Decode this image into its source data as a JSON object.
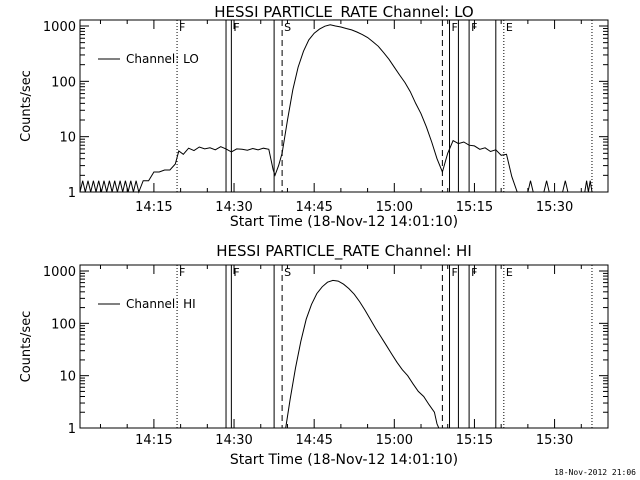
{
  "footer_stamp": "18-Nov-2012 21:06",
  "chart_data": [
    {
      "type": "line",
      "title": "HESSI PARTICLE_RATE Channel: LO",
      "xlabel": "Start Time (18-Nov-12 14:01:10)",
      "ylabel": "Counts/sec",
      "yscale": "log",
      "ylim": [
        1,
        1000
      ],
      "xlim": [
        "14:01:10",
        "15:40:00"
      ],
      "x_ticks": [
        "14:15",
        "14:30",
        "14:45",
        "15:00",
        "15:15",
        "15:30"
      ],
      "y_ticks": [
        "1",
        "10",
        "100",
        "1000"
      ],
      "legend": {
        "entry": "Channel: LO",
        "position": "top-left"
      },
      "markers": [
        {
          "time": "14:19:20",
          "style": "dotted",
          "label": "F"
        },
        {
          "time": "14:28:30",
          "style": "solid",
          "label": ""
        },
        {
          "time": "14:29:30",
          "style": "solid",
          "label": "F"
        },
        {
          "time": "14:37:30",
          "style": "solid",
          "label": ""
        },
        {
          "time": "14:39:00",
          "style": "dashed",
          "label": "S"
        },
        {
          "time": "15:09:00",
          "style": "dashed",
          "label": ""
        },
        {
          "time": "15:10:20",
          "style": "solid",
          "label": "F"
        },
        {
          "time": "15:12:00",
          "style": "solid",
          "label": ""
        },
        {
          "time": "15:14:00",
          "style": "solid",
          "label": "F"
        },
        {
          "time": "15:19:00",
          "style": "solid",
          "label": ""
        },
        {
          "time": "15:20:30",
          "style": "dotted",
          "label": "E"
        },
        {
          "time": "15:37:00",
          "style": "dotted",
          "label": ""
        }
      ],
      "series": [
        {
          "name": "Channel: LO",
          "points": [
            [
              "14:01:10",
              1
            ],
            [
              "14:01:40",
              1.6
            ],
            [
              "14:02:10",
              1
            ],
            [
              "14:02:40",
              1.6
            ],
            [
              "14:03:10",
              1
            ],
            [
              "14:03:40",
              1.6
            ],
            [
              "14:04:10",
              1
            ],
            [
              "14:04:40",
              1.6
            ],
            [
              "14:05:10",
              1
            ],
            [
              "14:05:40",
              1.6
            ],
            [
              "14:06:10",
              1
            ],
            [
              "14:06:40",
              1.6
            ],
            [
              "14:07:10",
              1
            ],
            [
              "14:07:40",
              1.6
            ],
            [
              "14:08:10",
              1
            ],
            [
              "14:08:40",
              1.6
            ],
            [
              "14:09:10",
              1
            ],
            [
              "14:09:40",
              1.6
            ],
            [
              "14:10:10",
              1
            ],
            [
              "14:10:40",
              1.6
            ],
            [
              "14:11:10",
              1
            ],
            [
              "14:11:40",
              1.6
            ],
            [
              "14:12:10",
              1
            ],
            [
              "14:13:00",
              1.6
            ],
            [
              "14:14:00",
              1.6
            ],
            [
              "14:15:00",
              2.3
            ],
            [
              "14:16:00",
              2.3
            ],
            [
              "14:17:00",
              2.5
            ],
            [
              "14:18:00",
              2.5
            ],
            [
              "14:19:00",
              3.2
            ],
            [
              "14:19:40",
              5.5
            ],
            [
              "14:20:30",
              4.8
            ],
            [
              "14:21:30",
              6.2
            ],
            [
              "14:22:30",
              5.6
            ],
            [
              "14:23:30",
              6.5
            ],
            [
              "14:24:30",
              6.0
            ],
            [
              "14:25:30",
              6.3
            ],
            [
              "14:26:30",
              5.8
            ],
            [
              "14:27:30",
              6.6
            ],
            [
              "14:28:30",
              6.0
            ],
            [
              "14:29:30",
              5.3
            ],
            [
              "14:30:30",
              6.0
            ],
            [
              "14:31:30",
              5.9
            ],
            [
              "14:32:30",
              5.7
            ],
            [
              "14:33:30",
              6.1
            ],
            [
              "14:34:30",
              5.8
            ],
            [
              "14:35:30",
              6.2
            ],
            [
              "14:36:30",
              5.9
            ],
            [
              "14:37:20",
              2.5
            ],
            [
              "14:37:40",
              2.0
            ],
            [
              "14:38:20",
              3.0
            ],
            [
              "14:39:00",
              5.0
            ],
            [
              "14:40:00",
              20
            ],
            [
              "14:41:00",
              70
            ],
            [
              "14:42:00",
              180
            ],
            [
              "14:43:00",
              350
            ],
            [
              "14:44:00",
              560
            ],
            [
              "14:45:00",
              740
            ],
            [
              "14:46:00",
              880
            ],
            [
              "14:47:00",
              990
            ],
            [
              "14:48:00",
              1050
            ],
            [
              "14:49:00",
              1000
            ],
            [
              "14:50:00",
              960
            ],
            [
              "14:51:00",
              900
            ],
            [
              "14:52:00",
              850
            ],
            [
              "14:53:00",
              780
            ],
            [
              "14:54:00",
              700
            ],
            [
              "14:55:00",
              620
            ],
            [
              "14:56:00",
              520
            ],
            [
              "14:57:00",
              430
            ],
            [
              "14:58:00",
              330
            ],
            [
              "14:59:00",
              250
            ],
            [
              "15:00:00",
              180
            ],
            [
              "15:01:00",
              130
            ],
            [
              "15:02:00",
              95
            ],
            [
              "15:03:00",
              65
            ],
            [
              "15:04:00",
              40
            ],
            [
              "15:05:00",
              26
            ],
            [
              "15:06:00",
              15
            ],
            [
              "15:07:00",
              8
            ],
            [
              "15:08:00",
              4.0
            ],
            [
              "15:09:00",
              2.3
            ],
            [
              "15:10:00",
              5.0
            ],
            [
              "15:11:00",
              8.5
            ],
            [
              "15:12:00",
              7.5
            ],
            [
              "15:13:00",
              8.0
            ],
            [
              "15:14:00",
              7.0
            ],
            [
              "15:15:00",
              6.8
            ],
            [
              "15:16:00",
              5.9
            ],
            [
              "15:17:00",
              6.3
            ],
            [
              "15:18:00",
              5.4
            ],
            [
              "15:19:00",
              5.8
            ],
            [
              "15:20:00",
              4.6
            ],
            [
              "15:21:00",
              4.8
            ],
            [
              "15:22:00",
              1.9
            ],
            [
              "15:23:00",
              1.0
            ],
            [
              "15:25:00",
              1.0
            ],
            [
              "15:25:30",
              1.6
            ],
            [
              "15:26:00",
              1.0
            ],
            [
              "15:28:00",
              1.0
            ],
            [
              "15:28:30",
              1.6
            ],
            [
              "15:29:00",
              1.0
            ],
            [
              "15:31:30",
              1.0
            ],
            [
              "15:32:00",
              1.6
            ],
            [
              "15:32:30",
              1.0
            ],
            [
              "15:35:40",
              1.0
            ],
            [
              "15:36:00",
              1.6
            ],
            [
              "15:36:20",
              1.0
            ],
            [
              "15:36:40",
              1.6
            ],
            [
              "15:37:00",
              1.0
            ]
          ]
        }
      ]
    },
    {
      "type": "line",
      "title": "HESSI PARTICLE_RATE Channel: HI",
      "xlabel": "Start Time (18-Nov-12 14:01:10)",
      "ylabel": "Counts/sec",
      "yscale": "log",
      "ylim": [
        1,
        1000
      ],
      "xlim": [
        "14:01:10",
        "15:40:00"
      ],
      "x_ticks": [
        "14:15",
        "14:30",
        "14:45",
        "15:00",
        "15:15",
        "15:30"
      ],
      "y_ticks": [
        "1",
        "10",
        "100",
        "1000"
      ],
      "legend": {
        "entry": "Channel: HI",
        "position": "top-left"
      },
      "markers": [
        {
          "time": "14:19:20",
          "style": "dotted",
          "label": "F"
        },
        {
          "time": "14:28:30",
          "style": "solid",
          "label": ""
        },
        {
          "time": "14:29:30",
          "style": "solid",
          "label": "F"
        },
        {
          "time": "14:37:30",
          "style": "solid",
          "label": ""
        },
        {
          "time": "14:39:00",
          "style": "dashed",
          "label": "S"
        },
        {
          "time": "15:09:00",
          "style": "dashed",
          "label": ""
        },
        {
          "time": "15:10:20",
          "style": "solid",
          "label": "F"
        },
        {
          "time": "15:12:00",
          "style": "solid",
          "label": ""
        },
        {
          "time": "15:14:00",
          "style": "solid",
          "label": "F"
        },
        {
          "time": "15:19:00",
          "style": "solid",
          "label": ""
        },
        {
          "time": "15:20:30",
          "style": "dotted",
          "label": "E"
        },
        {
          "time": "15:37:00",
          "style": "dotted",
          "label": ""
        }
      ],
      "series": [
        {
          "name": "Channel: HI",
          "points": [
            [
              "14:39:40",
              1.0
            ],
            [
              "14:40:30",
              3.5
            ],
            [
              "14:41:30",
              14
            ],
            [
              "14:42:30",
              45
            ],
            [
              "14:43:30",
              120
            ],
            [
              "14:44:30",
              230
            ],
            [
              "14:45:30",
              370
            ],
            [
              "14:46:30",
              500
            ],
            [
              "14:47:30",
              610
            ],
            [
              "14:48:30",
              660
            ],
            [
              "14:49:30",
              640
            ],
            [
              "14:50:30",
              560
            ],
            [
              "14:51:30",
              460
            ],
            [
              "14:52:30",
              360
            ],
            [
              "14:53:30",
              260
            ],
            [
              "14:54:30",
              180
            ],
            [
              "14:55:30",
              120
            ],
            [
              "14:56:30",
              80
            ],
            [
              "14:57:30",
              55
            ],
            [
              "14:58:30",
              38
            ],
            [
              "14:59:30",
              26
            ],
            [
              "15:00:30",
              18
            ],
            [
              "15:01:30",
              13
            ],
            [
              "15:02:30",
              10
            ],
            [
              "15:03:30",
              7
            ],
            [
              "15:04:30",
              5
            ],
            [
              "15:05:30",
              4.0
            ],
            [
              "15:06:30",
              2.8
            ],
            [
              "15:07:30",
              2.0
            ],
            [
              "15:08:00",
              1.2
            ],
            [
              "15:08:20",
              1.0
            ]
          ]
        }
      ]
    }
  ]
}
